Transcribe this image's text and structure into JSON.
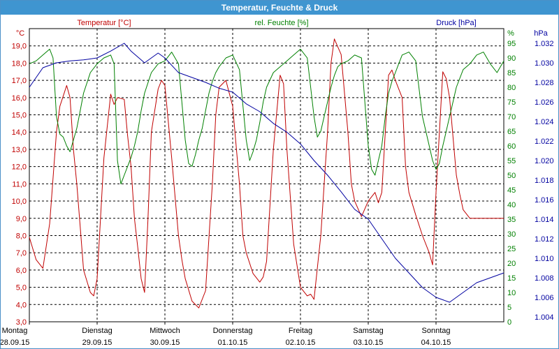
{
  "window": {
    "title": "Temperatur, Feuchte & Druck"
  },
  "colors": {
    "temperature": "#c00000",
    "humidity": "#008000",
    "pressure": "#0000a0",
    "grid": "#000000",
    "titlebar": "#3f95d0"
  },
  "chart_data": {
    "type": "line",
    "title": "Temperatur, Feuchte & Druck",
    "grid": true,
    "legend": "top",
    "x_ticks": [
      {
        "day": "Montag",
        "date": "28.09.15"
      },
      {
        "day": "Dienstag",
        "date": "29.09.15"
      },
      {
        "day": "Mittwoch",
        "date": "30.09.15"
      },
      {
        "day": "Donnerstag",
        "date": "01.10.15"
      },
      {
        "day": "Freitag",
        "date": "02.10.15"
      },
      {
        "day": "Samstag",
        "date": "03.10.15"
      },
      {
        "day": "Sonntag",
        "date": "04.10.15"
      }
    ],
    "x_range_days": [
      0,
      7
    ],
    "axes": {
      "temperature": {
        "title": "Temperatur [°C]",
        "unit": "°C",
        "min": 3.0,
        "max": 20.0,
        "ticks": [
          "19,0",
          "18,0",
          "17,0",
          "16,0",
          "15,0",
          "14,0",
          "13,0",
          "12,0",
          "11,0",
          "10,0",
          "9,0",
          "8,0",
          "7,0",
          "6,0",
          "5,0",
          "4,0",
          "3,0"
        ]
      },
      "humidity": {
        "title": "rel. Feuchte [%]",
        "unit": "%",
        "min": 0,
        "max": 100,
        "ticks": [
          "95",
          "90",
          "85",
          "80",
          "75",
          "70",
          "65",
          "60",
          "55",
          "50",
          "45",
          "40",
          "35",
          "30",
          "25",
          "20",
          "15",
          "10",
          "5",
          "0"
        ]
      },
      "pressure": {
        "title": "Druck [hPa]",
        "unit": "hPa",
        "min": 1.0035,
        "max": 1.0335,
        "ticks": [
          "1.032",
          "1.030",
          "1.028",
          "1.026",
          "1.024",
          "1.022",
          "1.020",
          "1.018",
          "1.016",
          "1.014",
          "1.012",
          "1.010",
          "1.008",
          "1.006",
          "1.004"
        ]
      }
    },
    "series": [
      {
        "name": "Temperatur [°C]",
        "axis": "temperature",
        "x": [
          0,
          0.1,
          0.2,
          0.3,
          0.4,
          0.45,
          0.55,
          0.6,
          0.65,
          0.7,
          0.75,
          0.8,
          0.9,
          0.95,
          1.0,
          1.1,
          1.2,
          1.25,
          1.3,
          1.4,
          1.45,
          1.5,
          1.55,
          1.6,
          1.65,
          1.7,
          1.75,
          1.8,
          1.9,
          1.95,
          2.0,
          2.1,
          2.2,
          2.25,
          2.3,
          2.4,
          2.5,
          2.6,
          2.7,
          2.75,
          2.8,
          2.9,
          3.0,
          3.1,
          3.15,
          3.2,
          3.3,
          3.4,
          3.45,
          3.5,
          3.6,
          3.7,
          3.75,
          3.8,
          3.9,
          4.0,
          4.1,
          4.15,
          4.2,
          4.3,
          4.4,
          4.45,
          4.5,
          4.6,
          4.7,
          4.75,
          4.8,
          4.9,
          5.0,
          5.1,
          5.15,
          5.2,
          5.3,
          5.35,
          5.4,
          5.5,
          5.55,
          5.6,
          5.7,
          5.8,
          5.9,
          5.95,
          6.0,
          6.1,
          6.15,
          6.2,
          6.3,
          6.35,
          6.4,
          6.5,
          6.6,
          6.7,
          6.8,
          6.85,
          6.9,
          7.0
        ],
        "values": [
          7.9,
          6.6,
          6.1,
          8.7,
          14.0,
          15.5,
          16.7,
          16.0,
          13.0,
          11.0,
          8.5,
          6.0,
          4.7,
          4.5,
          5.5,
          12.5,
          16.2,
          15.6,
          16.0,
          15.9,
          13.8,
          12.0,
          9.0,
          7.3,
          5.5,
          4.7,
          9.0,
          14.0,
          16.5,
          17.0,
          16.7,
          12.5,
          8.0,
          6.6,
          5.5,
          4.2,
          3.8,
          4.8,
          11.0,
          15.0,
          16.6,
          17.0,
          15.5,
          11.0,
          8.0,
          7.0,
          5.8,
          5.3,
          5.6,
          6.5,
          13.0,
          17.3,
          16.8,
          13.0,
          7.5,
          5.0,
          4.5,
          4.6,
          4.3,
          8.0,
          14.0,
          18.0,
          19.4,
          18.5,
          14.0,
          11.0,
          10.0,
          9.1,
          10.0,
          10.5,
          9.9,
          10.5,
          17.3,
          17.6,
          17.0,
          16.0,
          12.0,
          10.5,
          9.2,
          8.0,
          7.0,
          6.3,
          10.5,
          17.5,
          17.1,
          16.0,
          11.5,
          10.4,
          9.5,
          9.0,
          9.0,
          9.0,
          9.0,
          9.0,
          9.0,
          9.0
        ]
      },
      {
        "name": "rel. Feuchte [%]",
        "axis": "humidity",
        "x": [
          0,
          0.1,
          0.2,
          0.3,
          0.35,
          0.4,
          0.45,
          0.5,
          0.55,
          0.6,
          0.65,
          0.7,
          0.75,
          0.8,
          0.9,
          1.0,
          1.1,
          1.2,
          1.25,
          1.3,
          1.35,
          1.4,
          1.45,
          1.5,
          1.55,
          1.6,
          1.65,
          1.7,
          1.8,
          1.9,
          2.0,
          2.1,
          2.2,
          2.3,
          2.35,
          2.4,
          2.45,
          2.5,
          2.55,
          2.6,
          2.65,
          2.7,
          2.75,
          2.8,
          2.9,
          3.0,
          3.1,
          3.2,
          3.25,
          3.3,
          3.35,
          3.4,
          3.45,
          3.5,
          3.6,
          3.7,
          3.8,
          3.9,
          4.0,
          4.1,
          4.15,
          4.2,
          4.25,
          4.3,
          4.35,
          4.4,
          4.45,
          4.5,
          4.55,
          4.6,
          4.7,
          4.8,
          4.9,
          5.0,
          5.05,
          5.1,
          5.15,
          5.2,
          5.25,
          5.3,
          5.35,
          5.4,
          5.45,
          5.5,
          5.6,
          5.7,
          5.8,
          5.9,
          5.95,
          6.0,
          6.05,
          6.1,
          6.15,
          6.2,
          6.25,
          6.3,
          6.4,
          6.5,
          6.6,
          6.7,
          6.8,
          6.9,
          7.0
        ],
        "values": [
          88,
          89,
          91,
          93,
          90,
          70,
          64,
          63,
          60,
          58,
          62,
          66,
          72,
          78,
          85,
          88,
          90,
          91,
          88,
          55,
          47,
          50,
          53,
          56,
          60,
          65,
          72,
          78,
          85,
          88,
          89,
          92,
          88,
          62,
          54,
          53,
          57,
          62,
          66,
          72,
          78,
          82,
          85,
          87,
          90,
          91,
          86,
          62,
          55,
          58,
          62,
          68,
          75,
          80,
          85,
          87,
          89,
          91,
          93,
          90,
          80,
          70,
          63,
          65,
          70,
          75,
          80,
          84,
          87,
          88,
          89,
          91,
          90,
          60,
          52,
          50,
          55,
          60,
          70,
          78,
          82,
          85,
          88,
          91,
          92,
          89,
          70,
          60,
          55,
          52,
          54,
          60,
          65,
          70,
          75,
          80,
          86,
          88,
          91,
          92,
          88,
          85,
          89
        ]
      },
      {
        "name": "Druck [hPa]",
        "axis": "pressure",
        "x": [
          0,
          0.2,
          0.4,
          0.6,
          0.8,
          1.0,
          1.2,
          1.4,
          1.5,
          1.7,
          1.9,
          2.0,
          2.2,
          2.4,
          2.6,
          2.8,
          3.0,
          3.2,
          3.4,
          3.6,
          3.8,
          4.0,
          4.2,
          4.4,
          4.6,
          4.8,
          5.0,
          5.2,
          5.4,
          5.6,
          5.8,
          6.0,
          6.2,
          6.4,
          6.6,
          6.8,
          7.0
        ],
        "values": [
          1.0275,
          1.0295,
          1.03,
          1.0302,
          1.0303,
          1.0305,
          1.0312,
          1.032,
          1.0312,
          1.03,
          1.031,
          1.0305,
          1.029,
          1.0285,
          1.028,
          1.0274,
          1.027,
          1.0258,
          1.025,
          1.0238,
          1.0229,
          1.0217,
          1.02,
          1.0185,
          1.0168,
          1.015,
          1.014,
          1.012,
          1.01,
          1.0085,
          1.007,
          1.006,
          1.0055,
          1.0065,
          1.0075,
          1.008,
          1.0085
        ]
      }
    ]
  }
}
